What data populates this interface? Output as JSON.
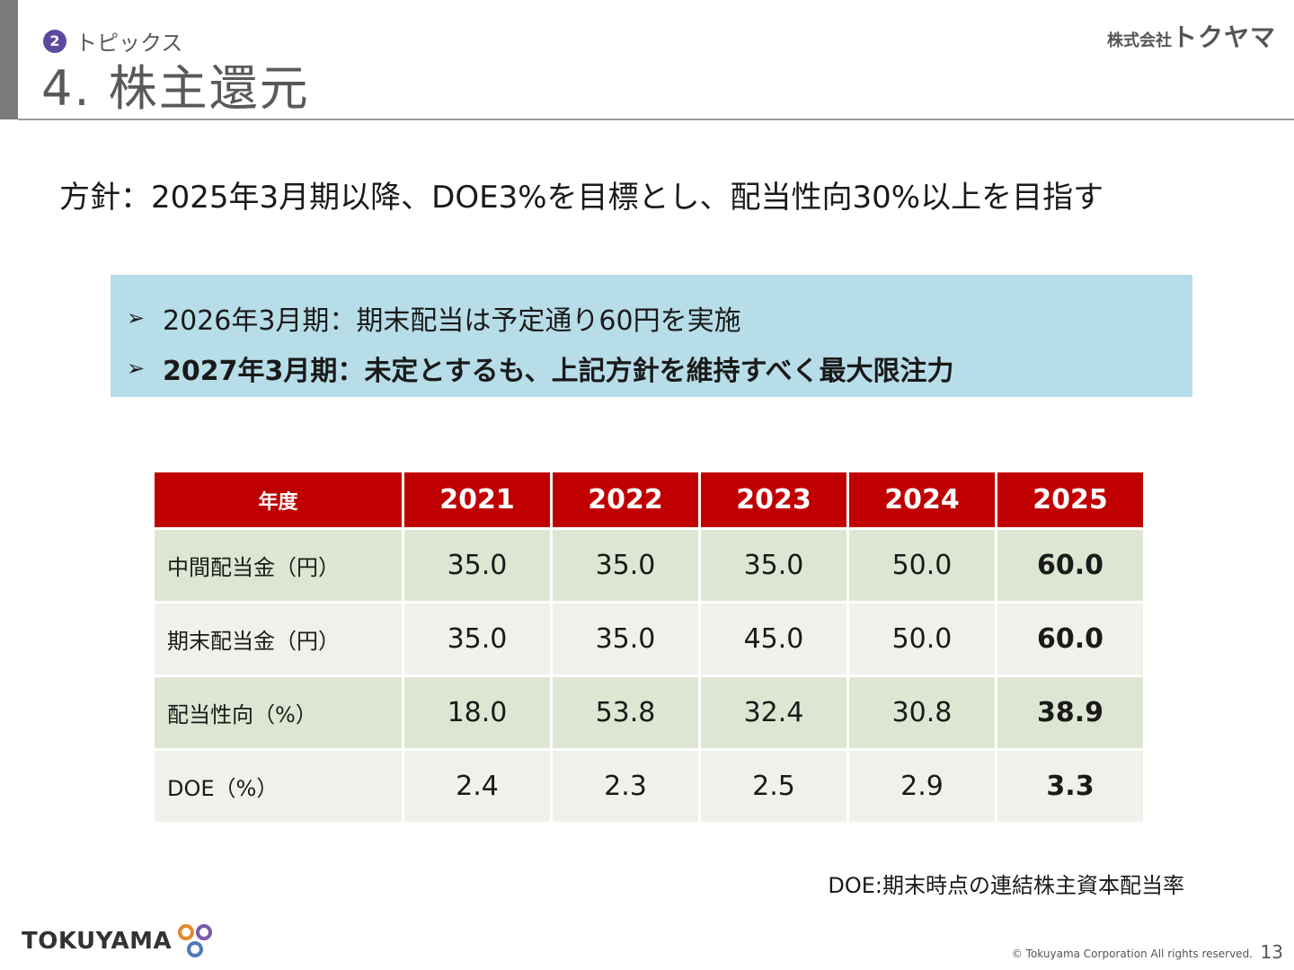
{
  "header": {
    "section_number": "2",
    "section_label": "トピックス",
    "title": "4. 株主還元",
    "company_prefix": "株式会社",
    "company_name": "トクヤマ"
  },
  "policy": {
    "text": "方針：2025年3月期以降、DOE3%を目標とし、配当性向30%以上を目指す"
  },
  "notes": [
    {
      "arrow": "➢",
      "text": "2026年3月期：期末配当は予定通り60円を実施"
    },
    {
      "arrow": "➢",
      "text": "2027年3月期：未定とするも、上記方針を維持すべく最大限注力"
    }
  ],
  "table": {
    "header_label": "年度",
    "years": [
      "2021",
      "2022",
      "2023",
      "2024",
      "2025"
    ],
    "rows": [
      {
        "label": "中間配当金（円）",
        "values": [
          "35.0",
          "35.0",
          "35.0",
          "50.0",
          "60.0"
        ]
      },
      {
        "label": "期末配当金（円）",
        "values": [
          "35.0",
          "35.0",
          "45.0",
          "50.0",
          "60.0"
        ]
      },
      {
        "label": "配当性向（%）",
        "values": [
          "18.0",
          "53.8",
          "32.4",
          "30.8",
          "38.9"
        ]
      },
      {
        "label": "DOE（%）",
        "values": [
          "2.4",
          "2.3",
          "2.5",
          "2.9",
          "3.3"
        ]
      }
    ]
  },
  "doe_note": "DOE:期末時点の連結株主資本配当率",
  "footer": {
    "logo_text": "TOKUYAMA",
    "copyright": "© Tokuyama Corporation All rights reserved.",
    "page_number": "13"
  },
  "colors": {
    "table_header": "#c00000",
    "note_box": "#b7dde8",
    "row_odd": "#dde6d2",
    "row_even": "#eff2ea",
    "section_badge": "#5b4a9e"
  }
}
